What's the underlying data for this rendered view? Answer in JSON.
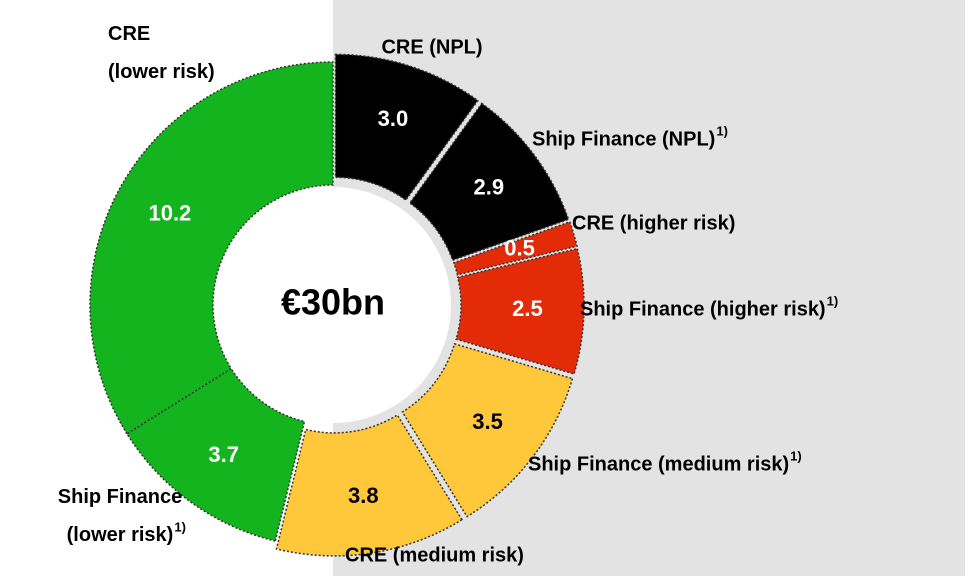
{
  "chart_data": {
    "type": "donut",
    "center_label": "€30bn",
    "categories": [
      "CRE (NPL)",
      "Ship Finance (NPL)",
      "CRE (higher risk)",
      "Ship Finance (higher risk)",
      "Ship Finance (medium risk)",
      "CRE (medium risk)",
      "Ship Finance (lower risk)",
      "CRE (lower risk)"
    ],
    "notes": [
      null,
      "1)",
      null,
      "1)",
      "1)",
      null,
      "1)",
      null
    ],
    "values": [
      3.0,
      2.9,
      0.5,
      2.5,
      3.5,
      3.8,
      3.7,
      10.2
    ],
    "value_labels": [
      "3.0",
      "2.9",
      "0.5",
      "2.5",
      "3.5",
      "3.8",
      "3.7",
      "10.2"
    ],
    "colors": [
      "#000000",
      "#000000",
      "#e32b07",
      "#e32b07",
      "#ffc83a",
      "#ffc83a",
      "#14b41e",
      "#14b41e"
    ]
  }
}
